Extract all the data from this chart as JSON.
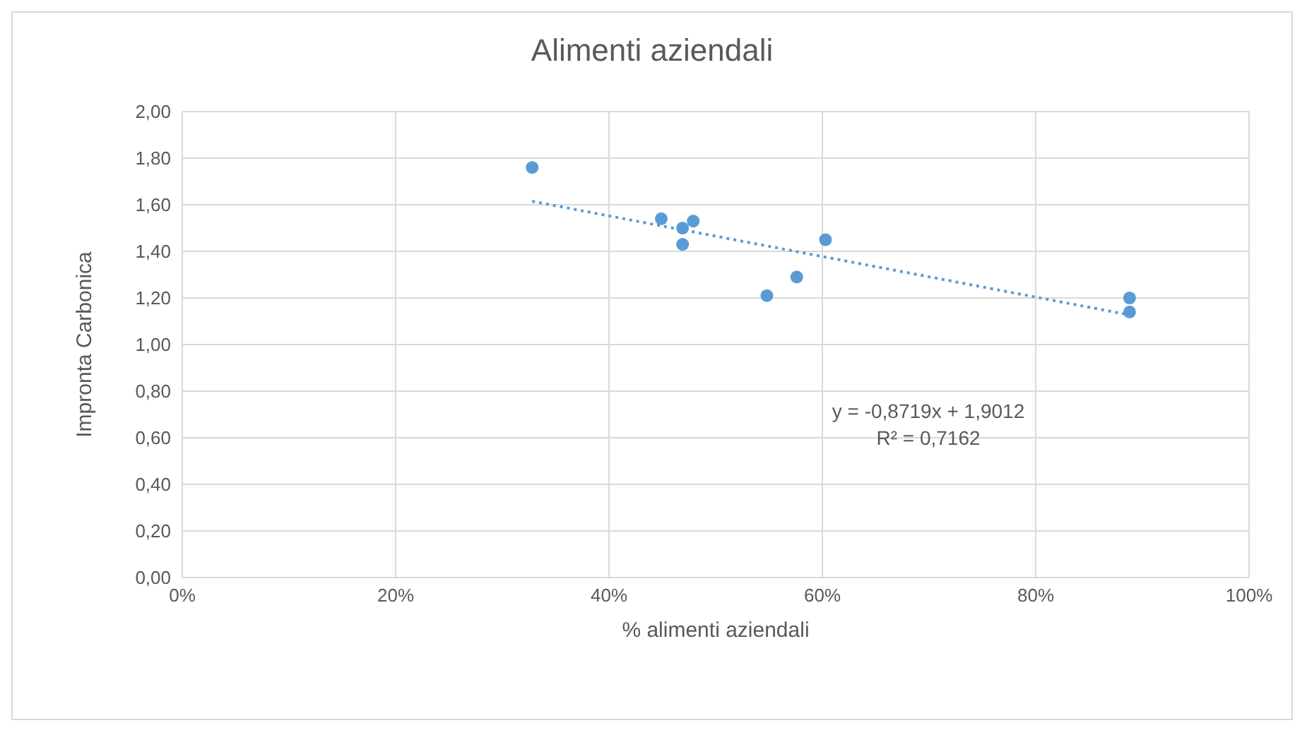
{
  "chart_data": {
    "type": "scatter",
    "title": "Alimenti aziendali",
    "xlabel": "% alimenti aziendali",
    "ylabel": "Impronta Carbonica",
    "series": [
      {
        "color": "#5b9bd5",
        "x": [
          0.328,
          0.449,
          0.469,
          0.479,
          0.469,
          0.603,
          0.576,
          0.548,
          0.888,
          0.888
        ],
        "values": [
          1.76,
          1.54,
          1.5,
          1.53,
          1.43,
          1.45,
          1.29,
          1.21,
          1.2,
          1.14
        ]
      },
      {
        "type": "line",
        "color": "#5b9bd5",
        "line_style": "dotted",
        "marker": "none",
        "x": [
          0.328,
          0.888
        ],
        "values": [
          1.615,
          1.127
        ]
      }
    ],
    "marker": "circle",
    "xlim": [
      0,
      1
    ],
    "ylim": [
      0,
      2
    ],
    "xticks": [
      {
        "value": 0,
        "label": "0%"
      },
      {
        "value": 0.2,
        "label": "20%"
      },
      {
        "value": 0.4,
        "label": "40%"
      },
      {
        "value": 0.6,
        "label": "60%"
      },
      {
        "value": 0.8,
        "label": "80%"
      },
      {
        "value": 1,
        "label": "100%"
      }
    ],
    "yticks": [
      {
        "value": 0,
        "label": "0,00"
      },
      {
        "value": 0.2,
        "label": "0,20"
      },
      {
        "value": 0.4,
        "label": "0,40"
      },
      {
        "value": 0.6,
        "label": "0,60"
      },
      {
        "value": 0.8,
        "label": "0,80"
      },
      {
        "value": 1,
        "label": "1,00"
      },
      {
        "value": 1.2,
        "label": "1,20"
      },
      {
        "value": 1.4,
        "label": "1,40"
      },
      {
        "value": 1.6,
        "label": "1,60"
      },
      {
        "value": 1.8,
        "label": "1,80"
      },
      {
        "value": 2,
        "label": "2,00"
      }
    ],
    "grid": true,
    "legend": false,
    "annotations": [
      "y = -0,8719x + 1,9012",
      "R² = 0,7162"
    ]
  }
}
